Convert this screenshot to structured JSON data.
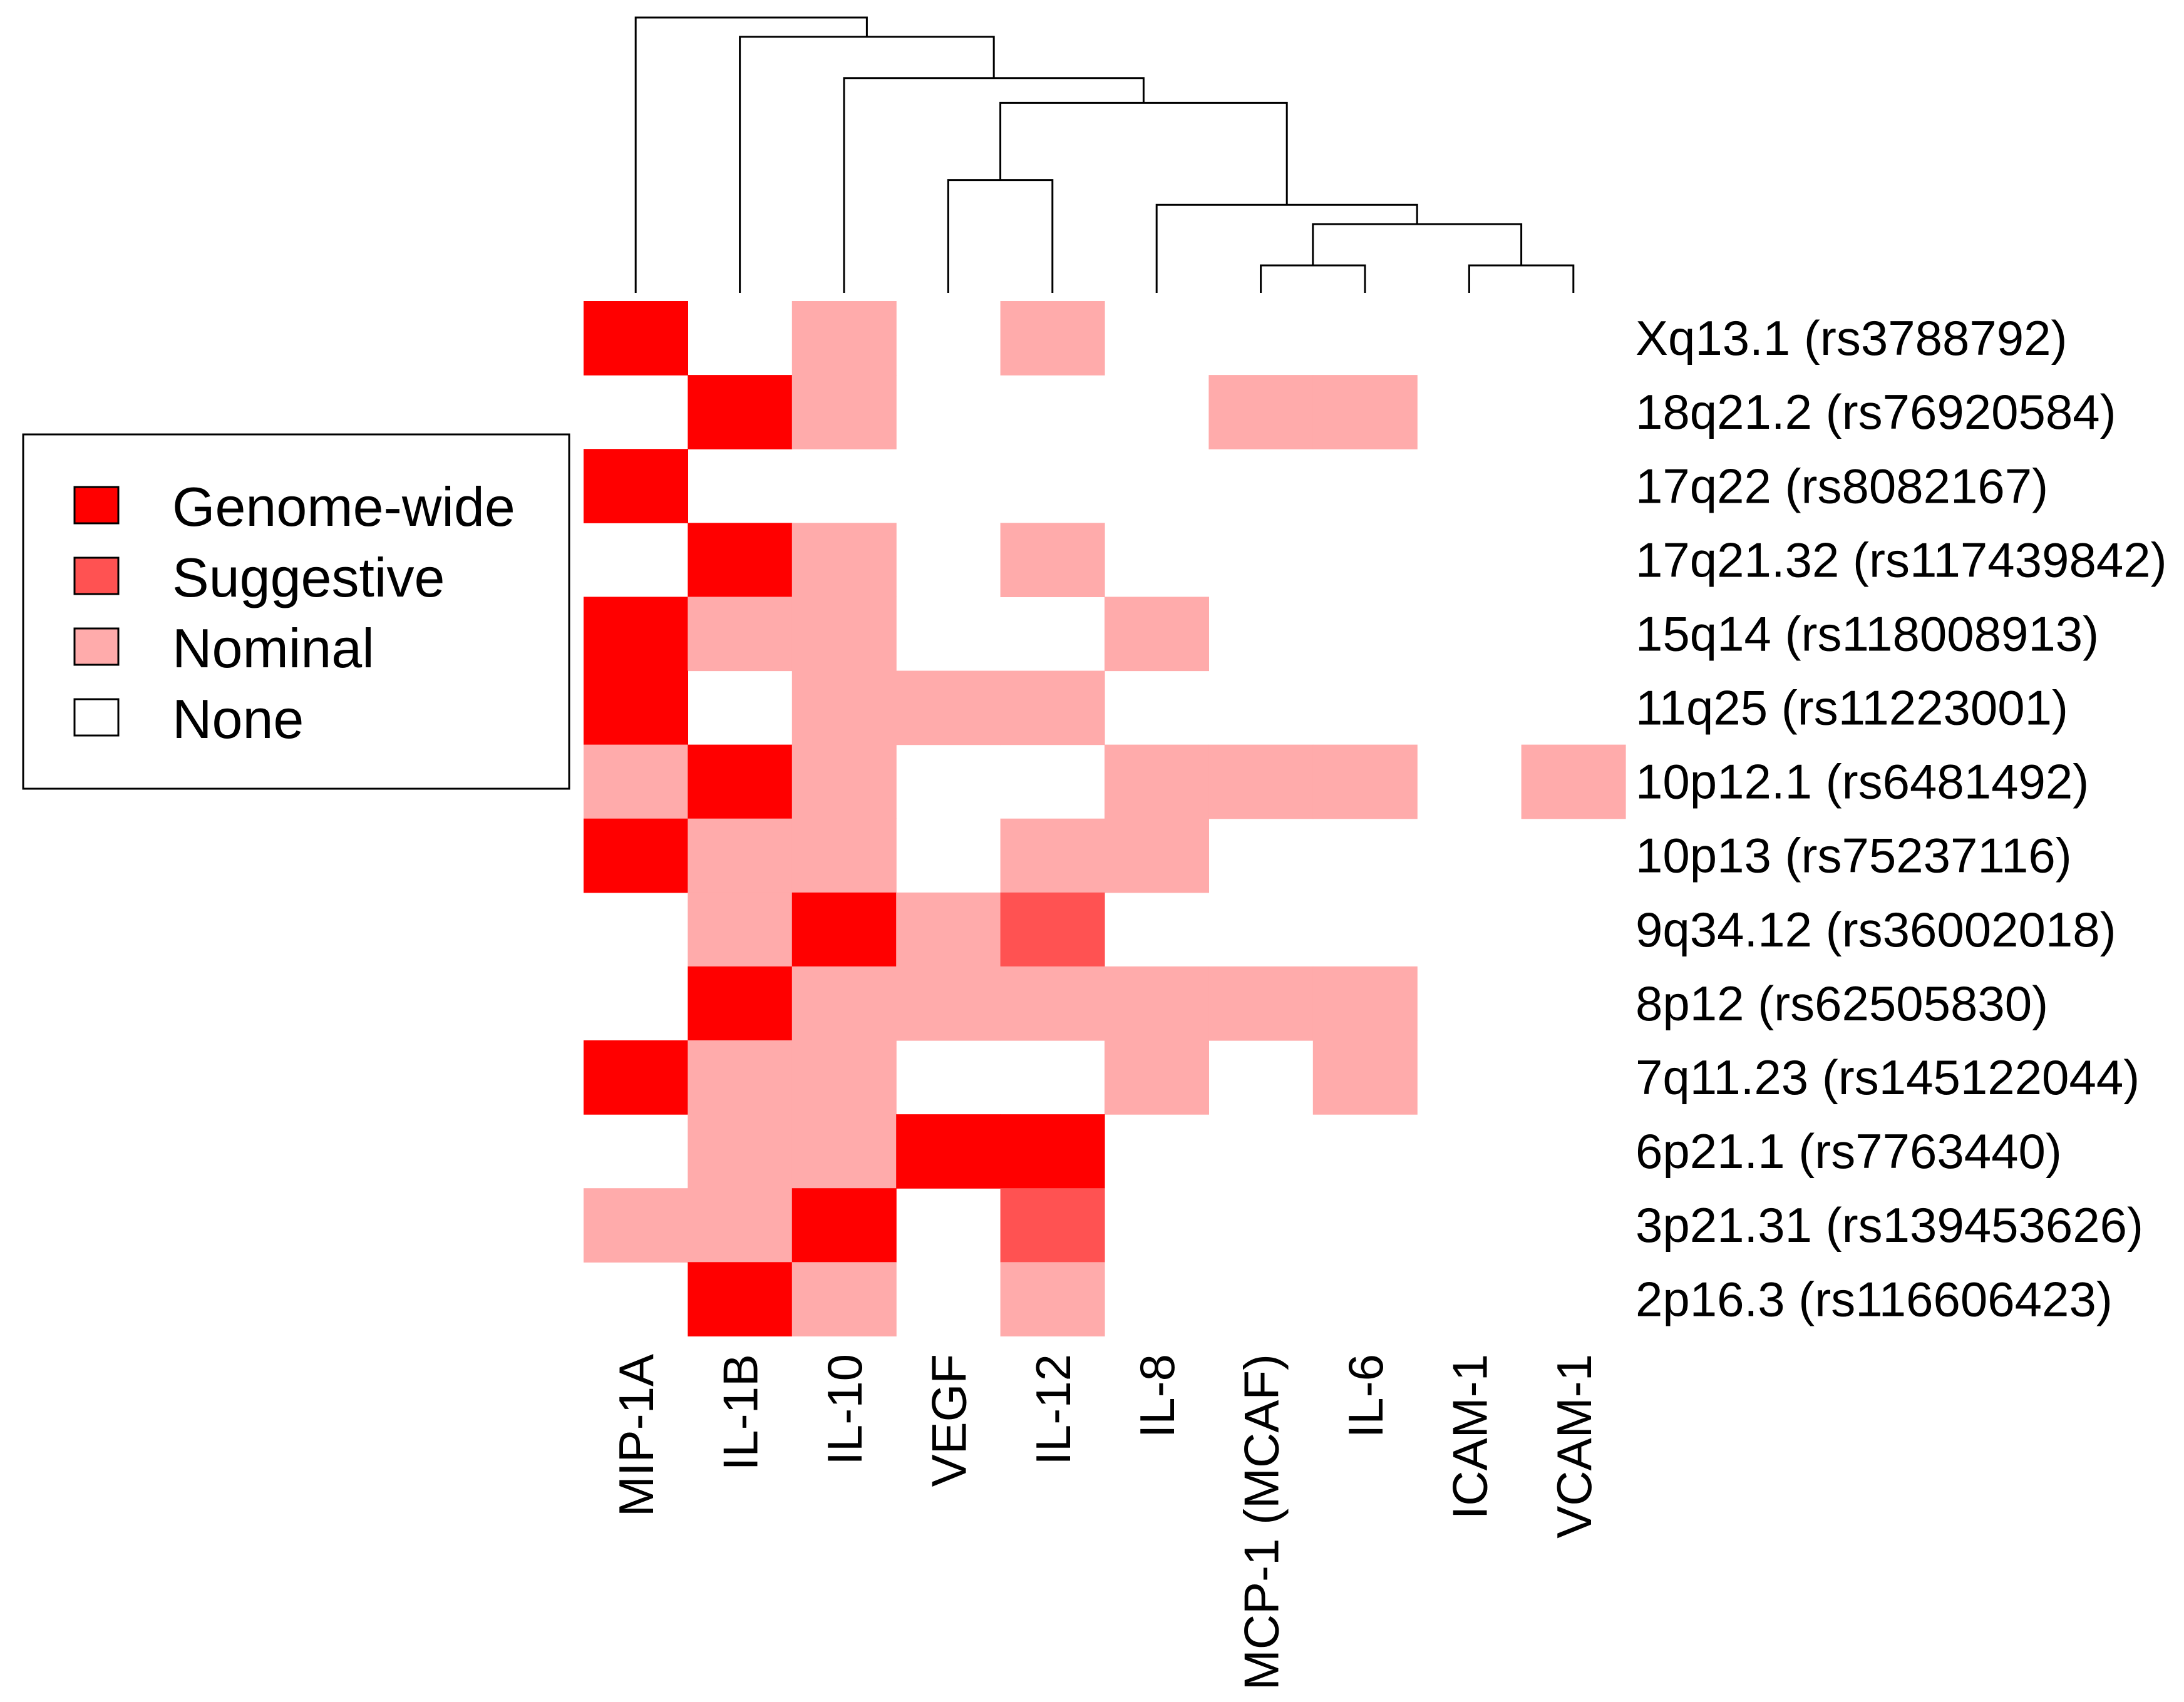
{
  "chart_data": {
    "type": "heatmap",
    "title": "",
    "columns": [
      "MIP-1A",
      "IL-1B",
      "IL-10",
      "VEGF",
      "IL-12",
      "IL-8",
      "MCP-1 (MCAF)",
      "IL-6",
      "ICAM-1",
      "VCAM-1"
    ],
    "rows": [
      "Xq13.1 (rs3788792)",
      "18q21.2 (rs76920584)",
      "17q22 (rs8082167)",
      "17q21.32 (rs117439842)",
      "15q14 (rs118008913)",
      "11q25 (rs11223001)",
      "10p12.1 (rs6481492)",
      "10p13 (rs75237116)",
      "9q34.12 (rs36002018)",
      "8p12 (rs62505830)",
      "7q11.23 (rs145122044)",
      "6p21.1 (rs7763440)",
      "3p21.31 (rs139453626)",
      "2p16.3 (rs116606423)"
    ],
    "levels": [
      "None",
      "Nominal",
      "Suggestive",
      "Genome-wide"
    ],
    "values": [
      [
        3,
        0,
        1,
        0,
        1,
        0,
        0,
        0,
        0,
        0
      ],
      [
        0,
        3,
        1,
        0,
        0,
        0,
        1,
        1,
        0,
        0
      ],
      [
        3,
        0,
        0,
        0,
        0,
        0,
        0,
        0,
        0,
        0
      ],
      [
        0,
        3,
        1,
        0,
        1,
        0,
        0,
        0,
        0,
        0
      ],
      [
        3,
        1,
        1,
        0,
        0,
        1,
        0,
        0,
        0,
        0
      ],
      [
        3,
        0,
        1,
        1,
        1,
        0,
        0,
        0,
        0,
        0
      ],
      [
        1,
        3,
        1,
        0,
        0,
        1,
        1,
        1,
        0,
        1
      ],
      [
        3,
        1,
        1,
        0,
        1,
        1,
        0,
        0,
        0,
        0
      ],
      [
        0,
        1,
        3,
        1,
        2,
        0,
        0,
        0,
        0,
        0
      ],
      [
        0,
        3,
        1,
        1,
        1,
        1,
        1,
        1,
        0,
        0
      ],
      [
        3,
        1,
        1,
        0,
        0,
        1,
        0,
        1,
        0,
        0
      ],
      [
        0,
        1,
        1,
        3,
        3,
        0,
        0,
        0,
        0,
        0
      ],
      [
        1,
        1,
        3,
        0,
        2,
        0,
        0,
        0,
        0,
        0
      ],
      [
        0,
        3,
        1,
        0,
        1,
        0,
        0,
        0,
        0,
        0
      ]
    ],
    "legend": {
      "placement": "left",
      "entries": [
        {
          "label": "Genome-wide",
          "color": "#ff0000"
        },
        {
          "label": "Suggestive",
          "color": "#ff5252"
        },
        {
          "label": "Nominal",
          "color": "#ffabab"
        },
        {
          "label": "None",
          "color": "#ffffff"
        }
      ]
    },
    "dendrogram": {
      "leaf_order": [
        "MIP-1A",
        "IL-1B",
        "IL-10",
        "VEGF",
        "IL-12",
        "IL-8",
        "MCP-1 (MCAF)",
        "IL-6",
        "ICAM-1",
        "VCAM-1"
      ],
      "merges": [
        [
          [
            "MCP-1 (MCAF)"
          ],
          [
            "IL-6"
          ],
          0.1
        ],
        [
          [
            "ICAM-1"
          ],
          [
            "VCAM-1"
          ],
          0.1
        ],
        [
          [
            "MCP-1 (MCAF)",
            "IL-6"
          ],
          [
            "ICAM-1",
            "VCAM-1"
          ],
          0.25
        ],
        [
          [
            "IL-8"
          ],
          [
            "MCP-1 (MCAF)",
            "IL-6",
            "ICAM-1",
            "VCAM-1"
          ],
          0.32
        ],
        [
          [
            "VEGF"
          ],
          [
            "IL-12"
          ],
          0.41
        ],
        [
          [
            "VEGF",
            "IL-12"
          ],
          [
            "IL-8",
            "MCP-1 (MCAF)",
            "IL-6",
            "ICAM-1",
            "VCAM-1"
          ],
          0.69
        ],
        [
          [
            "IL-10"
          ],
          [
            "VEGF",
            "IL-12",
            "IL-8",
            "MCP-1 (MCAF)",
            "IL-6",
            "ICAM-1",
            "VCAM-1"
          ],
          0.78
        ],
        [
          [
            "IL-1B"
          ],
          [
            "IL-10",
            "VEGF",
            "IL-12",
            "IL-8",
            "MCP-1 (MCAF)",
            "IL-6",
            "ICAM-1",
            "VCAM-1"
          ],
          0.93
        ],
        [
          [
            "MIP-1A"
          ],
          [
            "IL-1B",
            "IL-10",
            "VEGF",
            "IL-12",
            "IL-8",
            "MCP-1 (MCAF)",
            "IL-6",
            "ICAM-1",
            "VCAM-1"
          ],
          1.0
        ]
      ]
    }
  }
}
